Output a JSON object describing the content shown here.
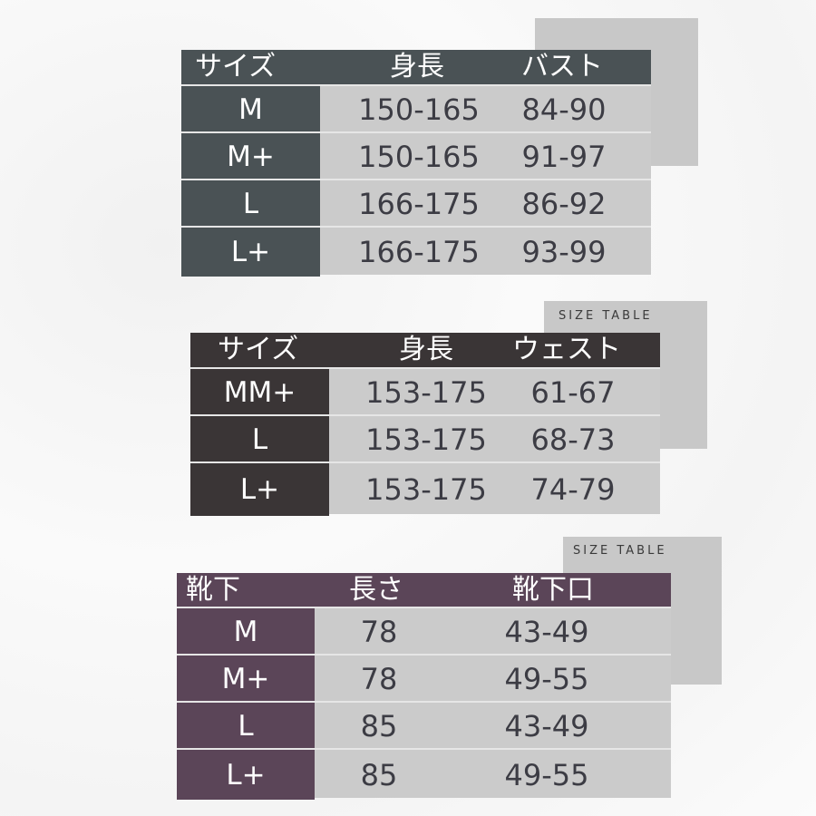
{
  "tables": [
    {
      "colors": {
        "dark": "#4a5255",
        "body": "#cbcbcb"
      },
      "size_tag": "",
      "headers": [
        "サイズ",
        "身長",
        "バスト"
      ],
      "rows": [
        [
          "M",
          "150-165",
          "84-90"
        ],
        [
          "M+",
          "150-165",
          "91-97"
        ],
        [
          "L",
          "166-175",
          "86-92"
        ],
        [
          "L+",
          "166-175",
          "93-99"
        ]
      ]
    },
    {
      "colors": {
        "dark": "#3a3536",
        "body": "#cbcbcb"
      },
      "size_tag": "SIZE TABLE",
      "headers": [
        "サイズ",
        "身長",
        "ウェスト"
      ],
      "rows": [
        [
          "MM+",
          "153-175",
          "61-67"
        ],
        [
          "L",
          "153-175",
          "68-73"
        ],
        [
          "L+",
          "153-175",
          "74-79"
        ]
      ]
    },
    {
      "colors": {
        "dark": "#5b4558",
        "body": "#cbcbcb"
      },
      "size_tag": "SIZE TABLE",
      "headers": [
        "靴下",
        "長さ",
        "靴下口"
      ],
      "rows": [
        [
          "M",
          "78",
          "43-49"
        ],
        [
          "M+",
          "78",
          "49-55"
        ],
        [
          "L",
          "85",
          "43-49"
        ],
        [
          "L+",
          "85",
          "49-55"
        ]
      ]
    }
  ]
}
